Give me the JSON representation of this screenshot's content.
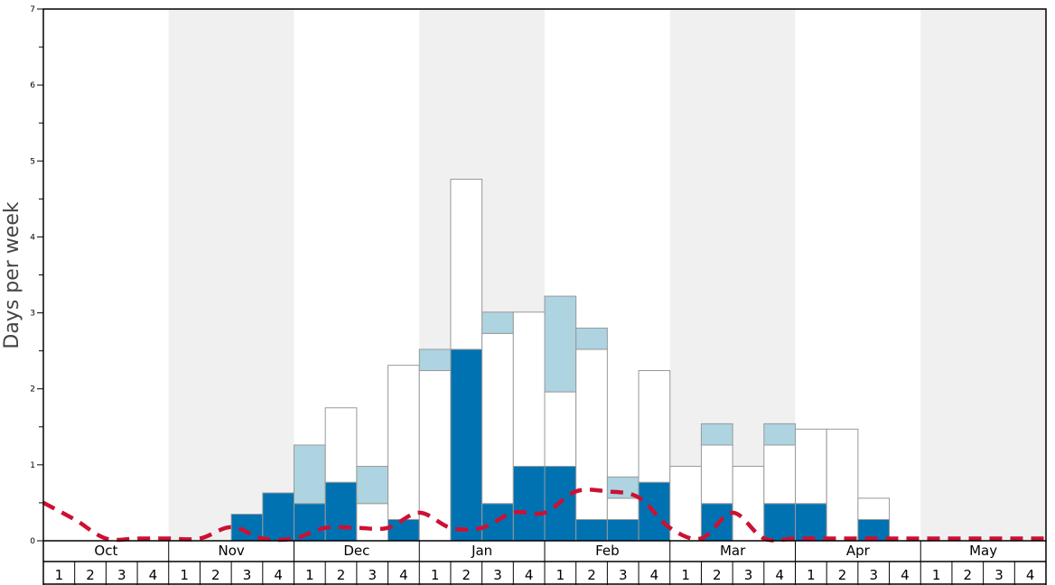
{
  "chart_data": {
    "type": "bar",
    "ylabel": "Days per week",
    "ylim": [
      0,
      7
    ],
    "yticks": [
      0,
      1,
      2,
      3,
      4,
      5,
      6,
      7
    ],
    "months": [
      "Oct",
      "Nov",
      "Dec",
      "Jan",
      "Feb",
      "Mar",
      "Apr",
      "May"
    ],
    "week_labels": [
      "1",
      "2",
      "3",
      "4"
    ],
    "colors": {
      "dark_blue": "#0072b2",
      "light_blue": "#add4e0",
      "white": "#ffffff",
      "band": "#f0f0f0",
      "trend": "#cc1133",
      "bar_stroke": "#999999"
    },
    "bars": [
      {
        "dark": 0,
        "white": 0,
        "light": 0
      },
      {
        "dark": 0,
        "white": 0,
        "light": 0
      },
      {
        "dark": 0,
        "white": 0,
        "light": 0
      },
      {
        "dark": 0,
        "white": 0,
        "light": 0
      },
      {
        "dark": 0,
        "white": 0,
        "light": 0
      },
      {
        "dark": 0,
        "white": 0,
        "light": 0
      },
      {
        "dark": 0.35,
        "white": 0,
        "light": 0
      },
      {
        "dark": 0.63,
        "white": 0,
        "light": 0
      },
      {
        "dark": 0.49,
        "white": 0,
        "light": 0.77
      },
      {
        "dark": 0.77,
        "white": 0.98,
        "light": 0
      },
      {
        "dark": 0,
        "white": 0.49,
        "light": 0.49
      },
      {
        "dark": 0.28,
        "white": 2.03,
        "light": 0
      },
      {
        "dark": 0,
        "white": 2.24,
        "light": 0.28
      },
      {
        "dark": 2.52,
        "white": 2.24,
        "light": 0
      },
      {
        "dark": 0.49,
        "white": 2.24,
        "light": 0.28
      },
      {
        "dark": 0.98,
        "white": 2.03,
        "light": 0
      },
      {
        "dark": 0.98,
        "white": 0.98,
        "light": 1.26
      },
      {
        "dark": 0.28,
        "white": 2.24,
        "light": 0.28
      },
      {
        "dark": 0.28,
        "white": 0.28,
        "light": 0.28
      },
      {
        "dark": 0.77,
        "white": 1.47,
        "light": 0
      },
      {
        "dark": 0,
        "white": 0.98,
        "light": 0
      },
      {
        "dark": 0.49,
        "white": 0.77,
        "light": 0.28
      },
      {
        "dark": 0,
        "white": 0.98,
        "light": 0
      },
      {
        "dark": 0.49,
        "white": 0.77,
        "light": 0.28
      },
      {
        "dark": 0.49,
        "white": 0.98,
        "light": 0
      },
      {
        "dark": 0,
        "white": 1.47,
        "light": 0
      },
      {
        "dark": 0.28,
        "white": 0.28,
        "light": 0
      },
      {
        "dark": 0,
        "white": 0,
        "light": 0
      },
      {
        "dark": 0,
        "white": 0,
        "light": 0
      },
      {
        "dark": 0,
        "white": 0,
        "light": 0
      },
      {
        "dark": 0,
        "white": 0,
        "light": 0
      },
      {
        "dark": 0,
        "white": 0,
        "light": 0
      }
    ],
    "trend": [
      0.5,
      0.28,
      0.03,
      0.03,
      0.03,
      0.03,
      0.18,
      0.03,
      0.03,
      0.17,
      0.17,
      0.17,
      0.37,
      0.17,
      0.17,
      0.37,
      0.37,
      0.65,
      0.65,
      0.57,
      0.17,
      0.03,
      0.37,
      0.03,
      0.03,
      0.03,
      0.03,
      0.03,
      0.03,
      0.03,
      0.03,
      0.03,
      0.03
    ]
  }
}
